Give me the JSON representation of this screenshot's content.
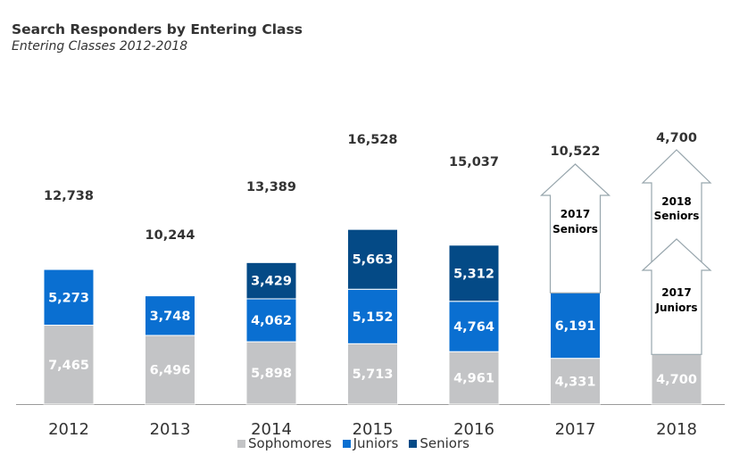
{
  "title": "Search Responders by Entering Class",
  "subtitle": "Entering Classes 2012-2018",
  "colors": {
    "Sophomores": "#c3c4c6",
    "Juniors": "#0a6fd1",
    "Seniors": "#044a86",
    "text": "#333333",
    "arrow_stroke": "#98a6ad",
    "axis": "#9a9a9a"
  },
  "chart_data": {
    "type": "bar",
    "stacked": true,
    "categories": [
      "2012",
      "2013",
      "2014",
      "2015",
      "2016",
      "2017",
      "2018"
    ],
    "series": [
      {
        "name": "Sophomores",
        "values": [
          7465,
          6496,
          5898,
          5713,
          4961,
          4331,
          4700
        ],
        "labels": [
          "7,465",
          "6,496",
          "5,898",
          "5,713",
          "4,961",
          "4,331",
          "4,700"
        ]
      },
      {
        "name": "Juniors",
        "values": [
          5273,
          3748,
          4062,
          5152,
          4764,
          6191,
          null
        ],
        "labels": [
          "5,273",
          "3,748",
          "4,062",
          "5,152",
          "4,764",
          "6,191",
          ""
        ]
      },
      {
        "name": "Seniors",
        "values": [
          null,
          null,
          3429,
          5663,
          5312,
          null,
          null
        ],
        "labels": [
          "",
          "",
          "3,429",
          "5,663",
          "5,312",
          "",
          ""
        ]
      }
    ],
    "totals": [
      "12,738",
      "10,244",
      "13,389",
      "16,528",
      "15,037",
      "10,522",
      "4,700"
    ],
    "projections": [
      {
        "category": "2017",
        "label_line1": "2017",
        "label_line2": "Seniors"
      },
      {
        "category": "2018",
        "label_line1": "2018",
        "label_line2": "Seniors"
      },
      {
        "category": "2018",
        "label_line1": "2017",
        "label_line2": "Juniors"
      }
    ],
    "legend_position": "bottom",
    "grid": false
  },
  "legend": [
    {
      "name": "Sophomores",
      "color": "#c3c4c6"
    },
    {
      "name": "Juniors",
      "color": "#0a6fd1"
    },
    {
      "name": "Seniors",
      "color": "#044a86"
    }
  ]
}
